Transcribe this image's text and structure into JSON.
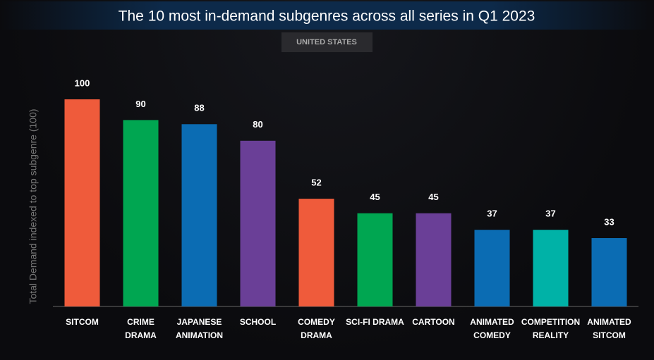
{
  "chart_data": {
    "type": "bar",
    "title": "The 10 most in-demand subgenres across all series in Q1 2023",
    "subtitle": "UNITED STATES",
    "y_label": "Total Demand indexed to top subgenre (100)",
    "categories": [
      "SITCOM",
      "CRIME DRAMA",
      "JAPANESE ANIMATION",
      "SCHOOL",
      "COMEDY DRAMA",
      "SCI-FI DRAMA",
      "CARTOON",
      "ANIMATED COMEDY",
      "COMPETITION REALITY",
      "ANIMATED SITCOM"
    ],
    "values": [
      100,
      90,
      88,
      80,
      52,
      45,
      45,
      37,
      37,
      33
    ],
    "colors": [
      "#ef5b3b",
      "#00a651",
      "#0b6cb3",
      "#6a3f97",
      "#ef5b3b",
      "#00a651",
      "#6a3f97",
      "#0b6cb3",
      "#00b2a7",
      "#0b6cb3"
    ],
    "ylim": [
      0,
      100
    ]
  }
}
